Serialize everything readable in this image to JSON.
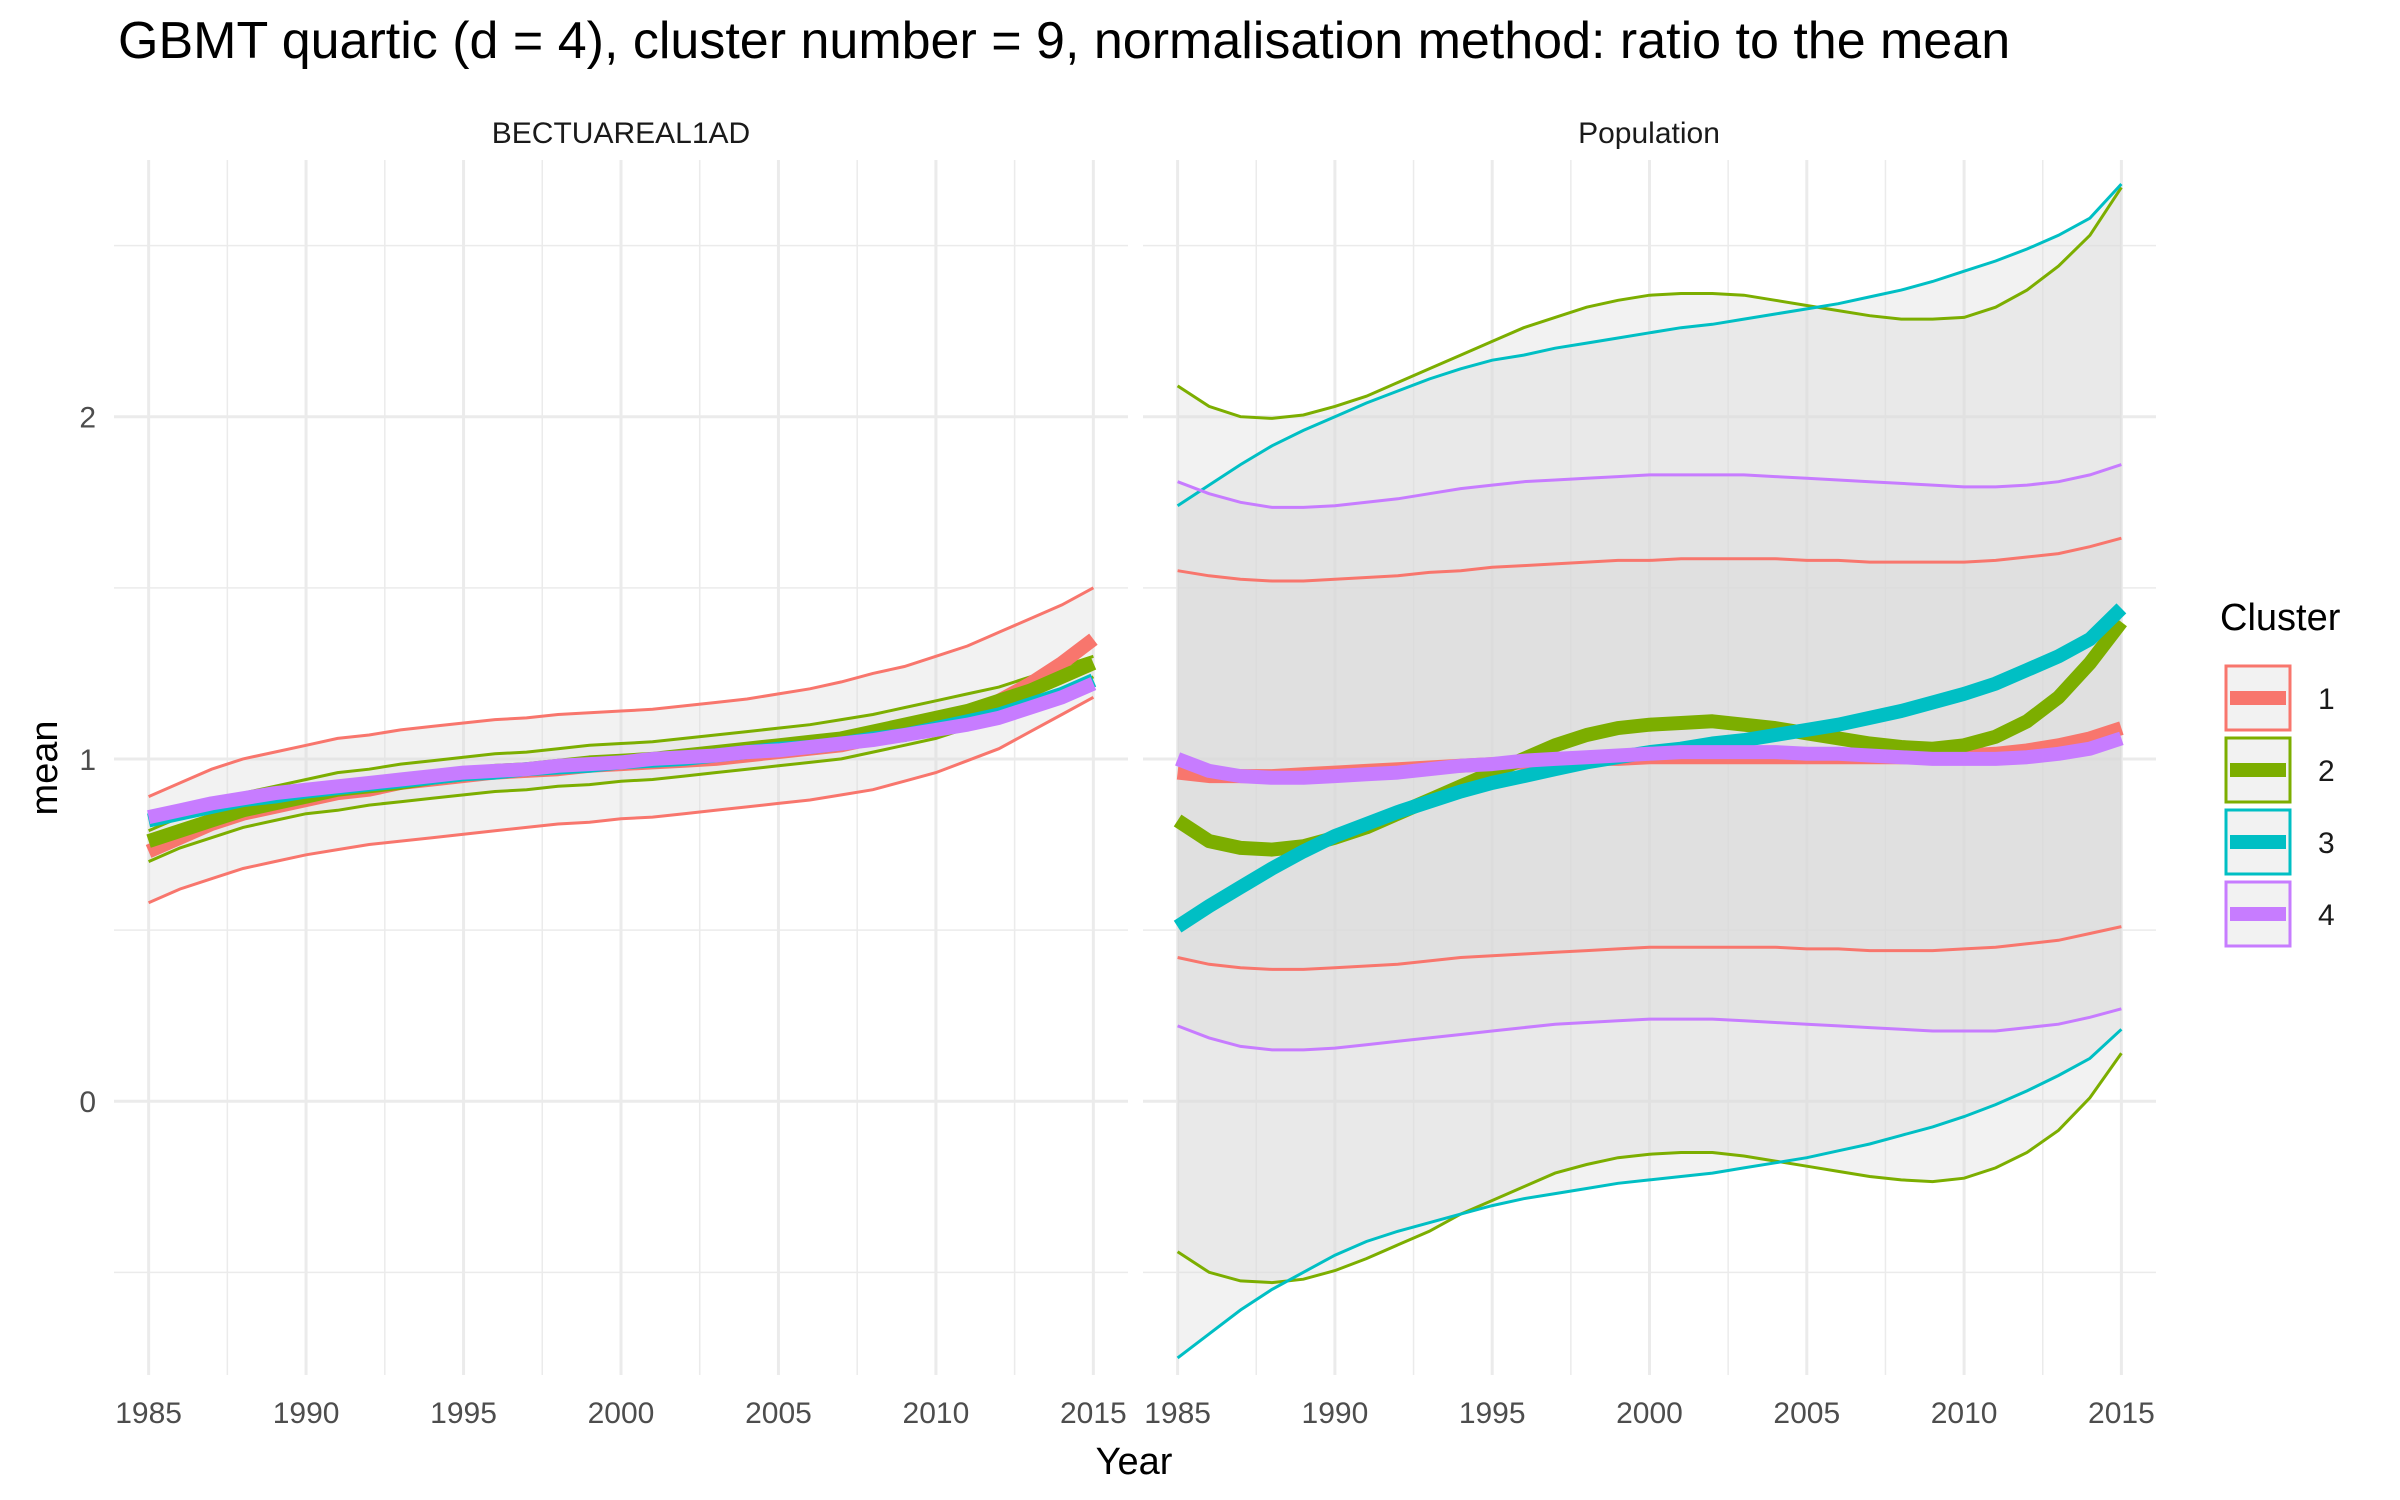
{
  "chart_data": {
    "type": "line",
    "title": "GBMT quartic (d = 4), cluster number = 9, normalisation method: ratio to the mean",
    "xlabel": "Year",
    "ylabel": "mean",
    "x_ticks": [
      1985,
      1990,
      1995,
      2000,
      2005,
      2010,
      2015
    ],
    "y_ticks": [
      0,
      1,
      2
    ],
    "xlim": [
      1983.9,
      2016.1
    ],
    "ylim": [
      -0.8,
      2.75
    ],
    "grid": true,
    "legend": {
      "title": "Cluster",
      "position": "right",
      "entries": [
        "1",
        "2",
        "3",
        "4"
      ]
    },
    "colors": {
      "1": "#F8766D",
      "2": "#7CAE00",
      "3": "#00BFC4",
      "4": "#C77CFF",
      "band_fill": "#d9d9d9",
      "grid": "#ebebeb"
    },
    "x": [
      1985,
      1986,
      1987,
      1988,
      1989,
      1990,
      1991,
      1992,
      1993,
      1994,
      1995,
      1996,
      1997,
      1998,
      1999,
      2000,
      2001,
      2002,
      2003,
      2004,
      2005,
      2006,
      2007,
      2008,
      2009,
      2010,
      2011,
      2012,
      2013,
      2014,
      2015
    ],
    "panels": [
      {
        "label": "BECTUAREAL1AD",
        "series": [
          {
            "name": "1",
            "mean": [
              0.73,
              0.77,
              0.81,
              0.84,
              0.86,
              0.88,
              0.9,
              0.91,
              0.93,
              0.94,
              0.95,
              0.96,
              0.965,
              0.97,
              0.98,
              0.985,
              0.99,
              0.995,
              1.0,
              1.01,
              1.02,
              1.03,
              1.04,
              1.06,
              1.08,
              1.1,
              1.13,
              1.17,
              1.22,
              1.28,
              1.35
            ],
            "upper": [
              0.89,
              0.93,
              0.97,
              1.0,
              1.02,
              1.04,
              1.06,
              1.07,
              1.085,
              1.095,
              1.105,
              1.115,
              1.12,
              1.13,
              1.135,
              1.14,
              1.145,
              1.155,
              1.165,
              1.175,
              1.19,
              1.205,
              1.225,
              1.25,
              1.27,
              1.3,
              1.33,
              1.37,
              1.41,
              1.45,
              1.5
            ],
            "lower": [
              0.58,
              0.62,
              0.65,
              0.68,
              0.7,
              0.72,
              0.735,
              0.75,
              0.76,
              0.77,
              0.78,
              0.79,
              0.8,
              0.81,
              0.815,
              0.825,
              0.83,
              0.84,
              0.85,
              0.86,
              0.87,
              0.88,
              0.895,
              0.91,
              0.935,
              0.96,
              0.995,
              1.03,
              1.08,
              1.13,
              1.18
            ]
          },
          {
            "name": "2",
            "mean": [
              0.76,
              0.79,
              0.82,
              0.85,
              0.87,
              0.89,
              0.91,
              0.92,
              0.93,
              0.945,
              0.955,
              0.965,
              0.97,
              0.98,
              0.99,
              0.995,
              1.0,
              1.01,
              1.02,
              1.03,
              1.04,
              1.05,
              1.06,
              1.08,
              1.1,
              1.12,
              1.14,
              1.17,
              1.2,
              1.24,
              1.28
            ],
            "upper": [
              0.79,
              0.83,
              0.87,
              0.9,
              0.92,
              0.94,
              0.96,
              0.97,
              0.985,
              0.995,
              1.005,
              1.015,
              1.02,
              1.03,
              1.04,
              1.045,
              1.05,
              1.06,
              1.07,
              1.08,
              1.09,
              1.1,
              1.115,
              1.13,
              1.15,
              1.17,
              1.19,
              1.21,
              1.24,
              1.27,
              1.3
            ],
            "lower": [
              0.7,
              0.74,
              0.77,
              0.8,
              0.82,
              0.84,
              0.85,
              0.865,
              0.875,
              0.885,
              0.895,
              0.905,
              0.91,
              0.92,
              0.925,
              0.935,
              0.94,
              0.95,
              0.96,
              0.97,
              0.98,
              0.99,
              1.0,
              1.02,
              1.04,
              1.06,
              1.09,
              1.12,
              1.15,
              1.19,
              1.24
            ]
          },
          {
            "name": "3",
            "mean": [
              0.82,
              0.84,
              0.86,
              0.88,
              0.89,
              0.905,
              0.915,
              0.925,
              0.935,
              0.945,
              0.955,
              0.96,
              0.97,
              0.975,
              0.98,
              0.99,
              0.995,
              1.0,
              1.01,
              1.02,
              1.03,
              1.035,
              1.045,
              1.06,
              1.07,
              1.09,
              1.11,
              1.13,
              1.16,
              1.19,
              1.23
            ],
            "upper": null,
            "lower": null
          },
          {
            "name": "4",
            "mean": [
              0.83,
              0.85,
              0.87,
              0.885,
              0.9,
              0.91,
              0.92,
              0.93,
              0.94,
              0.95,
              0.96,
              0.965,
              0.97,
              0.98,
              0.985,
              0.99,
              1.0,
              1.005,
              1.01,
              1.02,
              1.025,
              1.035,
              1.045,
              1.055,
              1.07,
              1.085,
              1.1,
              1.12,
              1.15,
              1.18,
              1.22
            ],
            "upper": null,
            "lower": null
          }
        ]
      },
      {
        "label": "Population",
        "series": [
          {
            "name": "1",
            "mean": [
              0.96,
              0.95,
              0.95,
              0.95,
              0.955,
              0.96,
              0.965,
              0.97,
              0.975,
              0.98,
              0.985,
              0.99,
              0.995,
              1.0,
              1.0,
              1.005,
              1.005,
              1.005,
              1.005,
              1.005,
              1.005,
              1.005,
              1.005,
              1.005,
              1.005,
              1.01,
              1.015,
              1.025,
              1.04,
              1.06,
              1.09
            ],
            "upper": [
              1.55,
              1.535,
              1.525,
              1.52,
              1.52,
              1.525,
              1.53,
              1.535,
              1.545,
              1.55,
              1.56,
              1.565,
              1.57,
              1.575,
              1.58,
              1.58,
              1.585,
              1.585,
              1.585,
              1.585,
              1.58,
              1.58,
              1.575,
              1.575,
              1.575,
              1.575,
              1.58,
              1.59,
              1.6,
              1.62,
              1.645
            ],
            "lower": [
              0.42,
              0.4,
              0.39,
              0.385,
              0.385,
              0.39,
              0.395,
              0.4,
              0.41,
              0.42,
              0.425,
              0.43,
              0.435,
              0.44,
              0.445,
              0.45,
              0.45,
              0.45,
              0.45,
              0.45,
              0.445,
              0.445,
              0.44,
              0.44,
              0.44,
              0.445,
              0.45,
              0.46,
              0.47,
              0.49,
              0.51
            ]
          },
          {
            "name": "2",
            "mean": [
              0.82,
              0.76,
              0.74,
              0.735,
              0.745,
              0.77,
              0.8,
              0.84,
              0.88,
              0.92,
              0.96,
              1.0,
              1.04,
              1.07,
              1.09,
              1.1,
              1.105,
              1.11,
              1.1,
              1.09,
              1.075,
              1.06,
              1.045,
              1.035,
              1.03,
              1.04,
              1.065,
              1.11,
              1.18,
              1.28,
              1.4
            ],
            "upper": [
              2.09,
              2.03,
              2.0,
              1.995,
              2.005,
              2.03,
              2.06,
              2.1,
              2.14,
              2.18,
              2.22,
              2.26,
              2.29,
              2.32,
              2.34,
              2.355,
              2.36,
              2.36,
              2.355,
              2.34,
              2.325,
              2.31,
              2.295,
              2.285,
              2.285,
              2.29,
              2.32,
              2.37,
              2.44,
              2.53,
              2.67
            ],
            "lower": [
              -0.44,
              -0.5,
              -0.525,
              -0.53,
              -0.52,
              -0.495,
              -0.46,
              -0.42,
              -0.38,
              -0.33,
              -0.29,
              -0.25,
              -0.21,
              -0.185,
              -0.165,
              -0.155,
              -0.15,
              -0.15,
              -0.16,
              -0.175,
              -0.19,
              -0.205,
              -0.22,
              -0.23,
              -0.235,
              -0.225,
              -0.195,
              -0.15,
              -0.085,
              0.01,
              0.14
            ]
          },
          {
            "name": "3",
            "mean": [
              0.51,
              0.57,
              0.625,
              0.68,
              0.73,
              0.775,
              0.81,
              0.845,
              0.875,
              0.905,
              0.93,
              0.95,
              0.97,
              0.99,
              1.005,
              1.02,
              1.03,
              1.045,
              1.055,
              1.07,
              1.085,
              1.1,
              1.12,
              1.14,
              1.165,
              1.19,
              1.22,
              1.26,
              1.3,
              1.35,
              1.44
            ],
            "upper": [
              1.74,
              1.8,
              1.86,
              1.915,
              1.96,
              2.0,
              2.04,
              2.075,
              2.11,
              2.14,
              2.165,
              2.18,
              2.2,
              2.215,
              2.23,
              2.245,
              2.26,
              2.27,
              2.285,
              2.3,
              2.315,
              2.33,
              2.35,
              2.37,
              2.395,
              2.425,
              2.455,
              2.49,
              2.53,
              2.58,
              2.68
            ],
            "lower": [
              -0.75,
              -0.68,
              -0.61,
              -0.55,
              -0.5,
              -0.45,
              -0.41,
              -0.38,
              -0.355,
              -0.33,
              -0.305,
              -0.285,
              -0.27,
              -0.255,
              -0.24,
              -0.23,
              -0.22,
              -0.21,
              -0.195,
              -0.18,
              -0.165,
              -0.145,
              -0.125,
              -0.1,
              -0.075,
              -0.045,
              -0.01,
              0.03,
              0.075,
              0.125,
              0.21
            ]
          },
          {
            "name": "4",
            "mean": [
              1.0,
              0.965,
              0.95,
              0.945,
              0.945,
              0.95,
              0.955,
              0.96,
              0.97,
              0.98,
              0.985,
              0.995,
              1.0,
              1.005,
              1.01,
              1.015,
              1.02,
              1.02,
              1.02,
              1.02,
              1.015,
              1.015,
              1.01,
              1.005,
              1.0,
              1.0,
              1.0,
              1.005,
              1.015,
              1.03,
              1.06
            ],
            "upper": [
              1.81,
              1.775,
              1.75,
              1.735,
              1.735,
              1.74,
              1.75,
              1.76,
              1.775,
              1.79,
              1.8,
              1.81,
              1.815,
              1.82,
              1.825,
              1.83,
              1.83,
              1.83,
              1.83,
              1.825,
              1.82,
              1.815,
              1.81,
              1.805,
              1.8,
              1.795,
              1.795,
              1.8,
              1.81,
              1.83,
              1.86
            ],
            "lower": [
              0.22,
              0.185,
              0.16,
              0.15,
              0.15,
              0.155,
              0.165,
              0.175,
              0.185,
              0.195,
              0.205,
              0.215,
              0.225,
              0.23,
              0.235,
              0.24,
              0.24,
              0.24,
              0.235,
              0.23,
              0.225,
              0.22,
              0.215,
              0.21,
              0.205,
              0.205,
              0.205,
              0.215,
              0.225,
              0.245,
              0.27
            ]
          }
        ]
      }
    ]
  }
}
